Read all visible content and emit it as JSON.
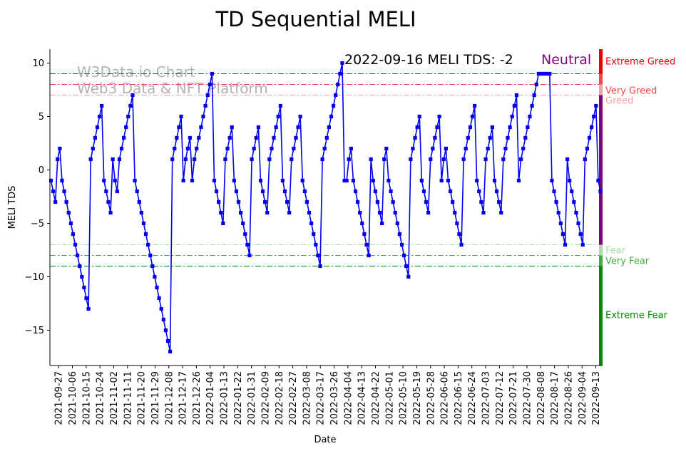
{
  "chart_data": {
    "type": "line",
    "title": "TD Sequential MELI",
    "xlabel": "Date",
    "ylabel": "MELI TDS",
    "ylim": [
      -18.3,
      11.3
    ],
    "yticks": [
      10,
      5,
      0,
      -5,
      -10,
      -15
    ],
    "annotation": "2022-09-16 MELI TDS: -2",
    "status": "Neutral",
    "watermark": [
      "W3Data.io Chart",
      "Web3 Data & NFT Platform"
    ],
    "x_start": "2021-09-22",
    "x_end": "2022-09-16",
    "x_ticks": [
      "2021-09-27",
      "2021-10-06",
      "2021-10-15",
      "2021-10-24",
      "2021-11-02",
      "2021-11-11",
      "2021-11-20",
      "2021-11-29",
      "2021-12-08",
      "2021-12-17",
      "2021-12-26",
      "2022-01-04",
      "2022-01-13",
      "2022-01-22",
      "2022-01-31",
      "2022-02-09",
      "2022-02-18",
      "2022-02-27",
      "2022-03-08",
      "2022-03-17",
      "2022-03-26",
      "2022-04-04",
      "2022-04-13",
      "2022-04-22",
      "2022-05-01",
      "2022-05-10",
      "2022-05-19",
      "2022-05-28",
      "2022-06-06",
      "2022-06-15",
      "2022-06-24",
      "2022-07-03",
      "2022-07-12",
      "2022-07-21",
      "2022-07-30",
      "2022-08-08",
      "2022-08-17",
      "2022-08-26",
      "2022-09-04",
      "2022-09-13"
    ],
    "thresholds": [
      {
        "name": "Extreme Greed",
        "value": 9,
        "color": "#ee0000"
      },
      {
        "name": "Very Greed",
        "value": 8,
        "color": "#f04848"
      },
      {
        "name": "Greed",
        "value": 7,
        "color": "#f4a0a0"
      },
      {
        "name": "Fear",
        "value": -7,
        "color": "#a8dca8"
      },
      {
        "name": "Very Fear",
        "value": -8,
        "color": "#44aa44"
      },
      {
        "name": "Extreme Fear",
        "value": -9,
        "color": "#008800"
      }
    ],
    "series": [
      {
        "name": "MELI TDS",
        "color": "#0000ee",
        "values": [
          -1,
          -2,
          -3,
          1,
          2,
          -1,
          -2,
          -3,
          -4,
          -5,
          -6,
          -7,
          -8,
          -9,
          -10,
          -11,
          -12,
          -13,
          1,
          2,
          3,
          4,
          5,
          6,
          -1,
          -2,
          -3,
          -4,
          1,
          -1,
          -2,
          1,
          2,
          3,
          4,
          5,
          6,
          7,
          -1,
          -2,
          -3,
          -4,
          -5,
          -6,
          -7,
          -8,
          -9,
          -10,
          -11,
          -12,
          -13,
          -14,
          -15,
          -16,
          -17,
          1,
          2,
          3,
          4,
          5,
          -1,
          1,
          2,
          3,
          -1,
          1,
          2,
          3,
          4,
          5,
          6,
          7,
          8,
          9,
          -1,
          -2,
          -3,
          -4,
          -5,
          1,
          2,
          3,
          4,
          -1,
          -2,
          -3,
          -4,
          -5,
          -6,
          -7,
          -8,
          1,
          2,
          3,
          4,
          -1,
          -2,
          -3,
          -4,
          1,
          2,
          3,
          4,
          5,
          6,
          -1,
          -2,
          -3,
          -4,
          1,
          2,
          3,
          4,
          5,
          -1,
          -2,
          -3,
          -4,
          -5,
          -6,
          -7,
          -8,
          -9,
          1,
          2,
          3,
          4,
          5,
          6,
          7,
          8,
          9,
          10,
          -1,
          -1,
          1,
          2,
          -1,
          -2,
          -3,
          -4,
          -5,
          -6,
          -7,
          -8,
          1,
          -1,
          -2,
          -3,
          -4,
          -5,
          1,
          2,
          -1,
          -2,
          -3,
          -4,
          -5,
          -6,
          -7,
          -8,
          -9,
          -10,
          1,
          2,
          3,
          4,
          5,
          -1,
          -2,
          -3,
          -4,
          1,
          2,
          3,
          4,
          5,
          -1,
          1,
          2,
          -1,
          -2,
          -3,
          -4,
          -5,
          -6,
          -7,
          1,
          2,
          3,
          4,
          5,
          6,
          -1,
          -2,
          -3,
          -4,
          1,
          2,
          3,
          4,
          -1,
          -2,
          -3,
          -4,
          1,
          2,
          3,
          4,
          5,
          6,
          7,
          -1,
          1,
          2,
          3,
          4,
          5,
          6,
          7,
          8,
          9,
          9,
          9,
          9,
          9,
          9,
          -1,
          -2,
          -3,
          -4,
          -5,
          -6,
          -7,
          1,
          -1,
          -2,
          -3,
          -4,
          -5,
          -6,
          -7,
          1,
          2,
          3,
          4,
          5,
          6,
          -1,
          -2
        ]
      }
    ]
  }
}
